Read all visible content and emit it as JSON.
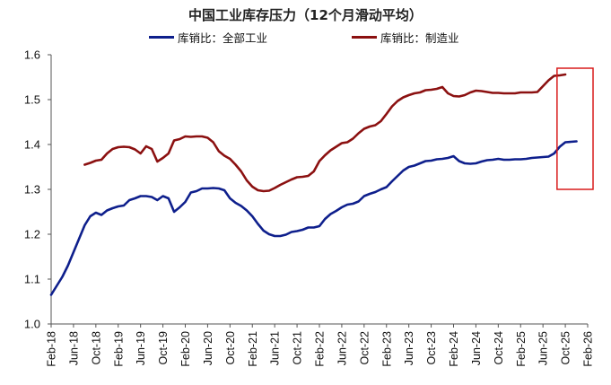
{
  "chart_data": {
    "type": "line",
    "title": "中国工业库存压力（12个月滑动平均）",
    "xlabel": "",
    "ylabel": "",
    "ylim": [
      1.0,
      1.6
    ],
    "yticks": [
      "1.0",
      "1.1",
      "1.2",
      "1.3",
      "1.4",
      "1.5",
      "1.6"
    ],
    "xticks": [
      "Feb-18",
      "Jun-18",
      "Oct-18",
      "Feb-19",
      "Jun-19",
      "Oct-19",
      "Feb-20",
      "Jun-20",
      "Oct-20",
      "Feb-21",
      "Jun-21",
      "Oct-21",
      "Feb-22",
      "Jun-22",
      "Oct-22",
      "Feb-23",
      "Jun-23",
      "Oct-23",
      "Feb-24",
      "Jun-24",
      "Oct-24",
      "Feb-25",
      "Jun-25",
      "Oct-25",
      "Feb-26"
    ],
    "x_start": "2018-02",
    "x_end": "2026-02",
    "grid": false,
    "legend_position": "top",
    "series": [
      {
        "name": "库销比：全部工业",
        "color": "#0e1f8c",
        "start": "2018-02",
        "values": [
          1.065,
          1.085,
          1.105,
          1.13,
          1.16,
          1.19,
          1.22,
          1.24,
          1.248,
          1.243,
          1.253,
          1.258,
          1.262,
          1.264,
          1.276,
          1.28,
          1.285,
          1.285,
          1.283,
          1.276,
          1.285,
          1.28,
          1.25,
          1.26,
          1.272,
          1.293,
          1.296,
          1.302,
          1.302,
          1.303,
          1.302,
          1.298,
          1.28,
          1.27,
          1.263,
          1.253,
          1.24,
          1.223,
          1.208,
          1.2,
          1.196,
          1.196,
          1.199,
          1.205,
          1.207,
          1.21,
          1.215,
          1.215,
          1.218,
          1.234,
          1.245,
          1.252,
          1.26,
          1.266,
          1.268,
          1.273,
          1.285,
          1.29,
          1.294,
          1.3,
          1.305,
          1.318,
          1.33,
          1.342,
          1.35,
          1.353,
          1.358,
          1.363,
          1.364,
          1.367,
          1.368,
          1.37,
          1.374,
          1.363,
          1.358,
          1.357,
          1.358,
          1.362,
          1.365,
          1.366,
          1.368,
          1.366,
          1.366,
          1.367,
          1.367,
          1.368,
          1.37,
          1.371,
          1.372,
          1.373,
          1.38,
          1.395,
          1.405,
          1.406,
          1.407
        ]
      },
      {
        "name": "库销比：制造业",
        "color": "#8b1010",
        "start": "2018-08",
        "values": [
          1.355,
          1.359,
          1.364,
          1.366,
          1.38,
          1.39,
          1.394,
          1.395,
          1.394,
          1.389,
          1.38,
          1.396,
          1.39,
          1.362,
          1.37,
          1.38,
          1.409,
          1.412,
          1.418,
          1.417,
          1.418,
          1.418,
          1.415,
          1.405,
          1.385,
          1.375,
          1.368,
          1.355,
          1.34,
          1.32,
          1.306,
          1.298,
          1.296,
          1.297,
          1.303,
          1.31,
          1.316,
          1.322,
          1.327,
          1.328,
          1.33,
          1.34,
          1.363,
          1.376,
          1.387,
          1.395,
          1.403,
          1.405,
          1.413,
          1.425,
          1.435,
          1.44,
          1.443,
          1.452,
          1.468,
          1.485,
          1.497,
          1.505,
          1.51,
          1.514,
          1.516,
          1.521,
          1.522,
          1.524,
          1.528,
          1.514,
          1.508,
          1.507,
          1.51,
          1.516,
          1.52,
          1.519,
          1.517,
          1.515,
          1.515,
          1.514,
          1.514,
          1.514,
          1.516,
          1.516,
          1.516,
          1.517,
          1.53,
          1.543,
          1.553,
          1.554,
          1.556
        ]
      }
    ]
  }
}
